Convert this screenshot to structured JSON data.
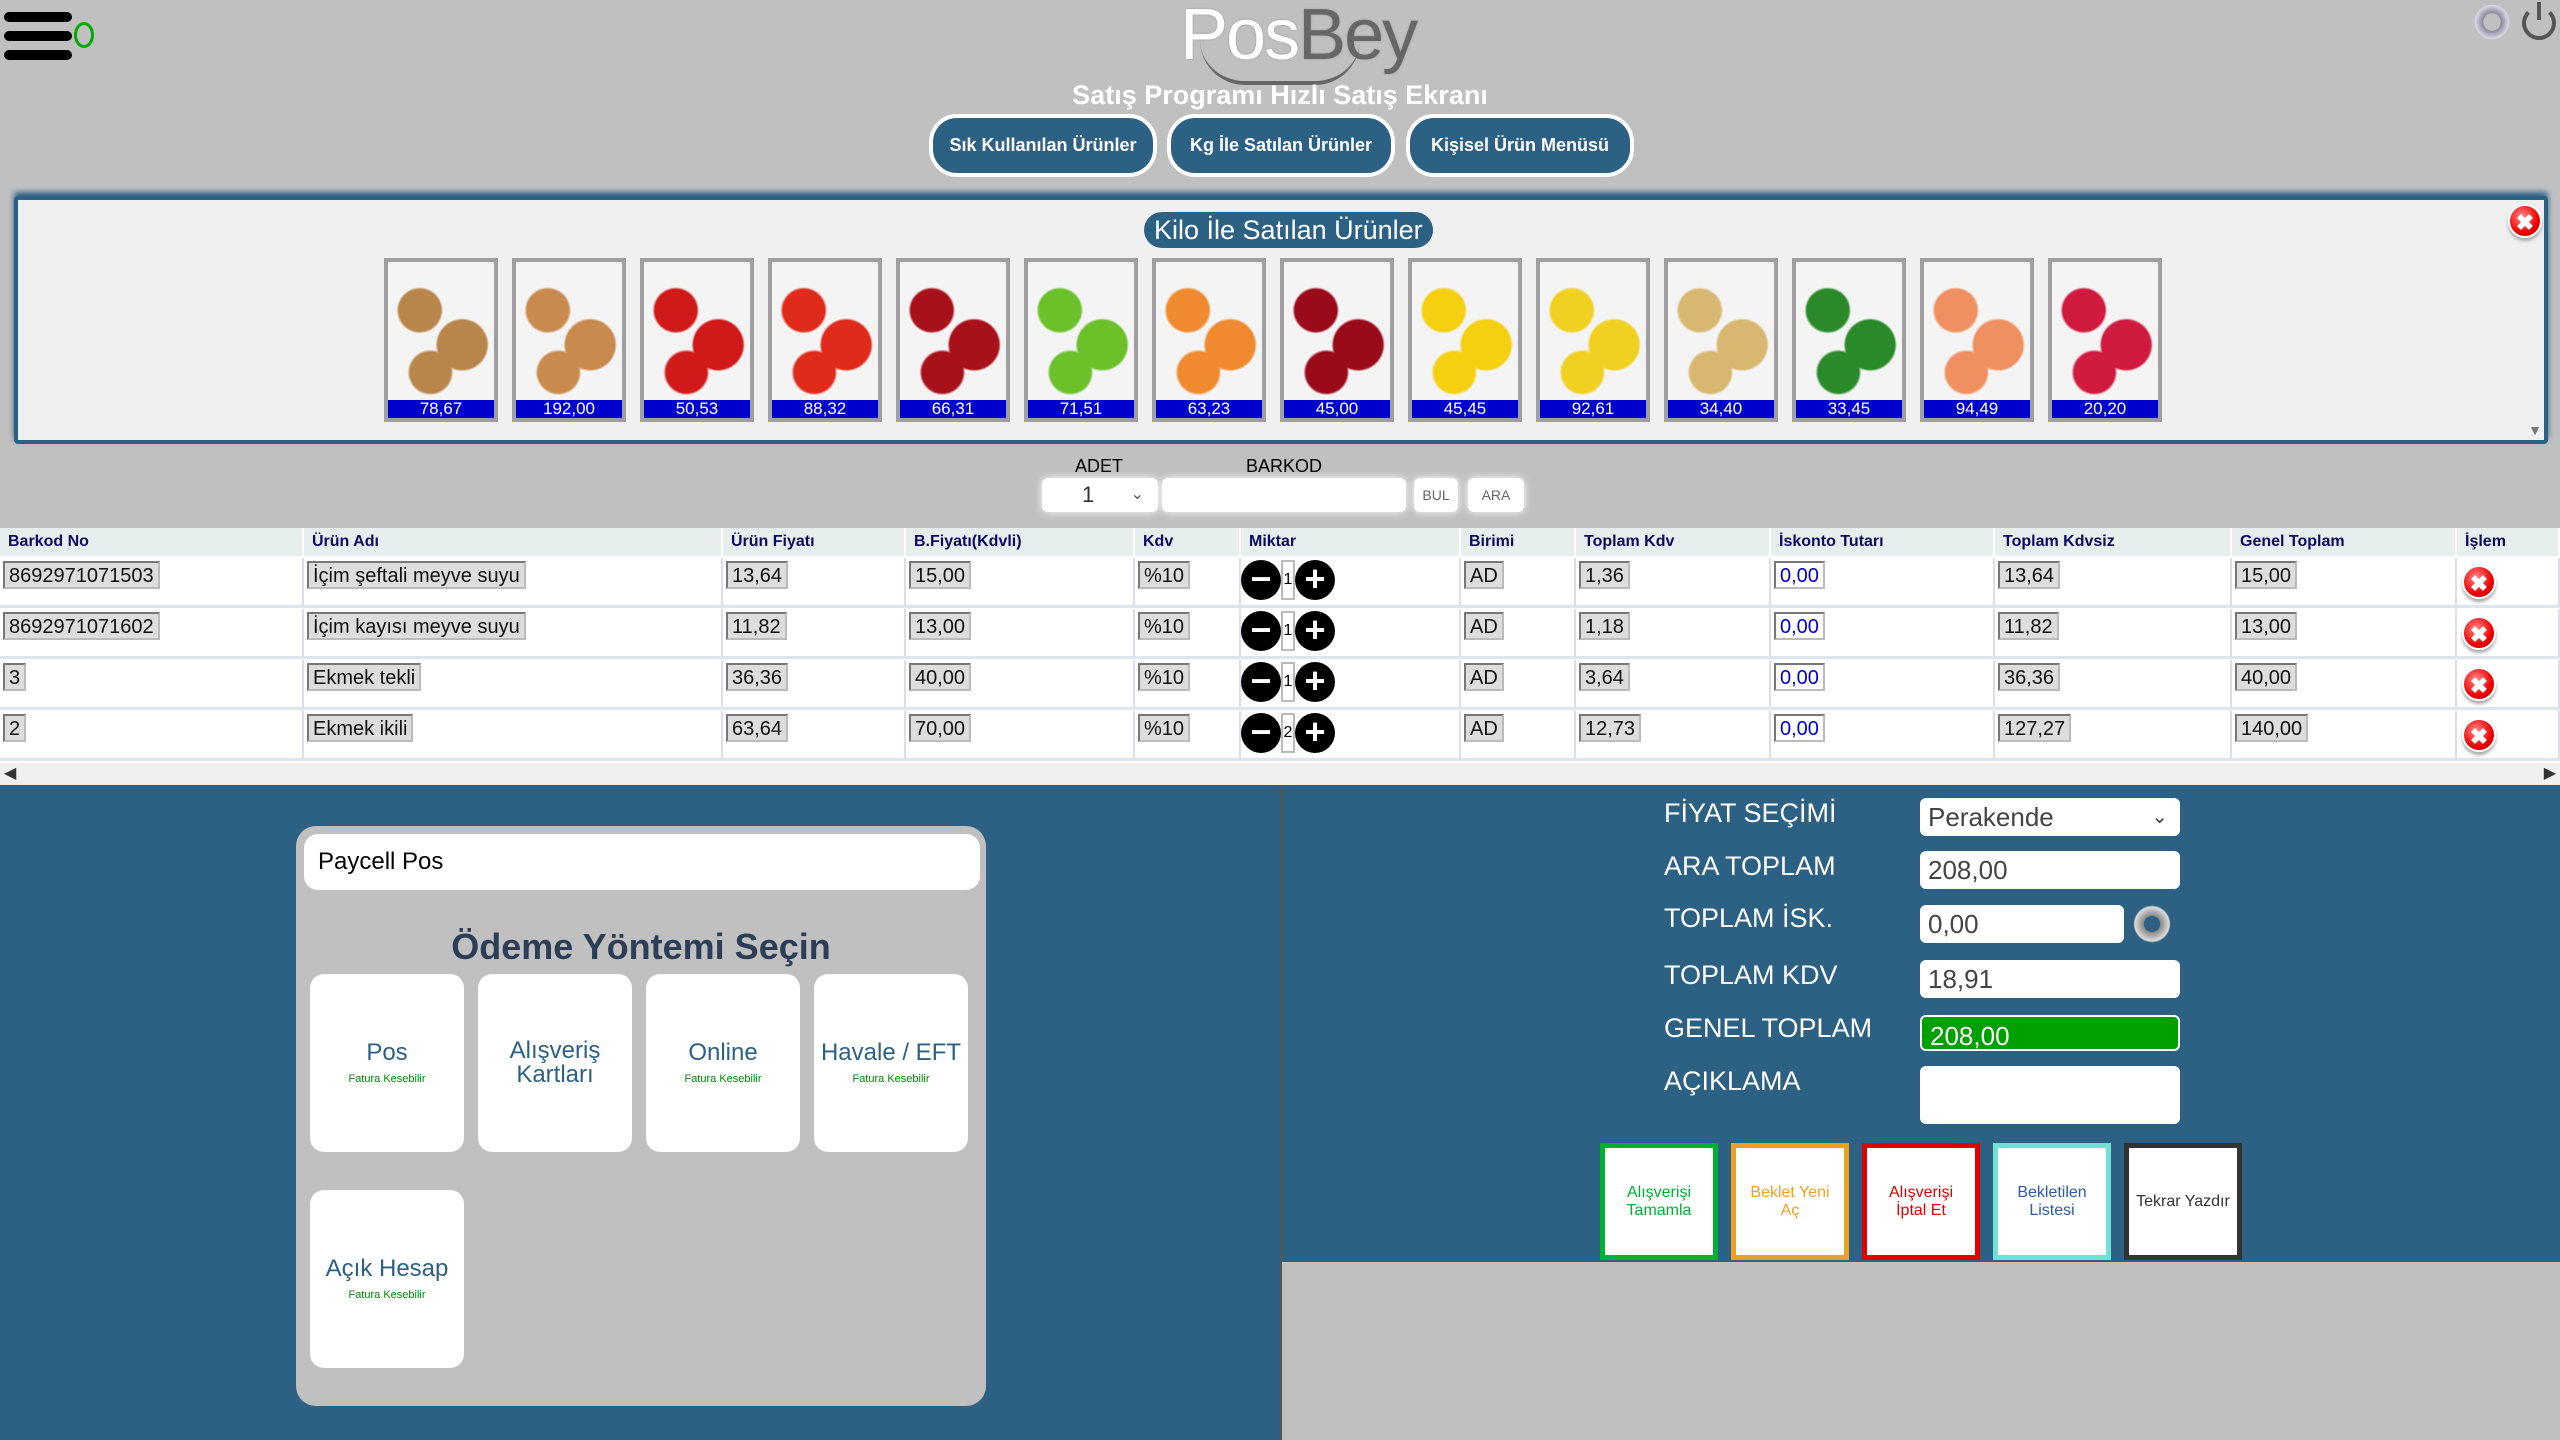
{
  "header": {
    "logo_a": "Pos",
    "logo_b": "Bey",
    "subtitle": "Satış Programı Hızlı Satış Ekranı",
    "buttons": [
      "Sık Kullanılan Ürünler",
      "Kg İle Satılan Ürünler",
      "Kişisel Ürün Menüsü"
    ]
  },
  "kilo_panel": {
    "title": "Kilo İle Satılan Ürünler",
    "close": "✖",
    "products": [
      {
        "image": "wheat-image",
        "price": "78,67",
        "color": "#b8864a"
      },
      {
        "image": "almond-image",
        "price": "192,00",
        "color": "#c98a4e"
      },
      {
        "image": "strawberry-image",
        "price": "50,53",
        "color": "#d01a1a"
      },
      {
        "image": "tomato-image",
        "price": "88,32",
        "color": "#e02a1a"
      },
      {
        "image": "apple-image",
        "price": "66,31",
        "color": "#a8101a"
      },
      {
        "image": "green-apple-image",
        "price": "71,51",
        "color": "#6cc02a"
      },
      {
        "image": "apricot-image",
        "price": "63,23",
        "color": "#f08a30"
      },
      {
        "image": "cherry-image",
        "price": "45,00",
        "color": "#9a0a1a"
      },
      {
        "image": "lemon-image",
        "price": "45,45",
        "color": "#f5d010"
      },
      {
        "image": "banana-image",
        "price": "92,61",
        "color": "#f0d020"
      },
      {
        "image": "potato-image",
        "price": "34,40",
        "color": "#d8b870"
      },
      {
        "image": "cucumber-image",
        "price": "33,45",
        "color": "#2a8a2a"
      },
      {
        "image": "peach-image",
        "price": "94,49",
        "color": "#f09060"
      },
      {
        "image": "radish-image",
        "price": "20,20",
        "color": "#d01a40"
      }
    ]
  },
  "search": {
    "adet_label": "ADET",
    "adet_value": "1",
    "barkod_label": "BARKOD",
    "bul": "BUL",
    "ara": "ARA"
  },
  "table": {
    "headers": [
      "Barkod No",
      "Ürün Adı",
      "Ürün Fiyatı",
      "B.Fiyatı(Kdvli)",
      "Kdv",
      "Miktar",
      "Birimi",
      "Toplam Kdv",
      "İskonto Tutarı",
      "Toplam Kdvsiz",
      "Genel Toplam",
      "İşlem"
    ],
    "rows": [
      [
        "8692971071503",
        "İçim şeftali meyve suyu",
        "13,64",
        "15,00",
        "%10",
        "1",
        "AD",
        "1,36",
        "0,00",
        "13,64",
        "15,00"
      ],
      [
        "8692971071602",
        "İçim kayısı meyve suyu",
        "11,82",
        "13,00",
        "%10",
        "1",
        "AD",
        "1,18",
        "0,00",
        "11,82",
        "13,00"
      ],
      [
        "3",
        "Ekmek tekli",
        "36,36",
        "40,00",
        "%10",
        "1",
        "AD",
        "3,64",
        "0,00",
        "36,36",
        "40,00"
      ],
      [
        "2",
        "Ekmek ikili",
        "63,64",
        "70,00",
        "%10",
        "2",
        "AD",
        "12,73",
        "0,00",
        "127,27",
        "140,00"
      ]
    ]
  },
  "payment": {
    "pos_name": "Paycell Pos",
    "title": "Ödeme Yöntemi Seçin",
    "methods": [
      {
        "label": "Pos",
        "sub": "Fatura Kesebilir"
      },
      {
        "label": "Alışveriş Kartları",
        "sub": ""
      },
      {
        "label": "Online",
        "sub": "Fatura Kesebilir"
      },
      {
        "label": "Havale / EFT",
        "sub": "Fatura Kesebilir"
      },
      {
        "label": "Açık Hesap",
        "sub": "Fatura Kesebilir"
      }
    ]
  },
  "summary": {
    "fiyat_label": "FİYAT SEÇİMİ",
    "fiyat_value": "Perakende",
    "ara_label": "ARA TOPLAM",
    "ara_value": "208,00",
    "isk_label": "TOPLAM İSK.",
    "isk_value": "0,00",
    "kdv_label": "TOPLAM KDV",
    "kdv_value": "18,91",
    "genel_label": "GENEL TOPLAM",
    "genel_value": "208,00",
    "aciklama_label": "AÇIKLAMA",
    "aciklama_value": ""
  },
  "actions": [
    {
      "label": "Alışverişi Tamamla",
      "color": "#00b030"
    },
    {
      "label": "Beklet Yeni Aç",
      "color": "#f0a020"
    },
    {
      "label": "Alışverişi İptal Et",
      "color": "#e00000"
    },
    {
      "label": "Bekletilen Listesi",
      "color": "#70e0d0"
    },
    {
      "label": "Tekrar Yazdır",
      "color": "#333333"
    }
  ]
}
